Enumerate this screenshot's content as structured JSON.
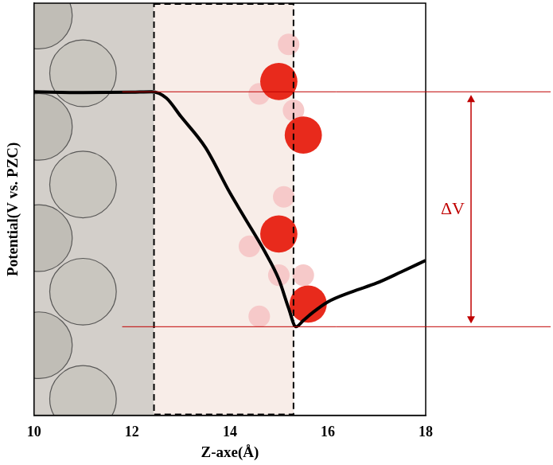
{
  "chart_data": {
    "type": "line",
    "x_label": "Z-axe(Å)",
    "y_label": "Potential(V vs. PZC)",
    "x": [
      10,
      11,
      12,
      12.4,
      12.7,
      13,
      13.5,
      14,
      14.3,
      14.7,
      15,
      15.2,
      15.35,
      15.5,
      15.7,
      16,
      16.5,
      17,
      17.5,
      18
    ],
    "values": [
      7.85,
      7.83,
      7.84,
      7.85,
      7.7,
      7.25,
      6.5,
      5.4,
      4.8,
      4.0,
      3.3,
      2.6,
      2.15,
      2.3,
      2.5,
      2.75,
      3.0,
      3.21,
      3.48,
      3.76
    ],
    "color": "#000000",
    "xlim": [
      10,
      18
    ],
    "xticks": [
      10,
      12,
      14,
      16,
      18
    ],
    "ylim": [
      0,
      10
    ],
    "tick_labels": "x",
    "grid": false,
    "regions": [
      {
        "from": 10,
        "to": 12.45,
        "color": "#d3cfca"
      },
      {
        "from": 12.45,
        "to": 15.3,
        "color": "#f8ede8"
      }
    ],
    "annotations": [
      {
        "text": "ΔV",
        "from": 7.85,
        "to": 2.15,
        "color": "#c00000"
      }
    ]
  }
}
